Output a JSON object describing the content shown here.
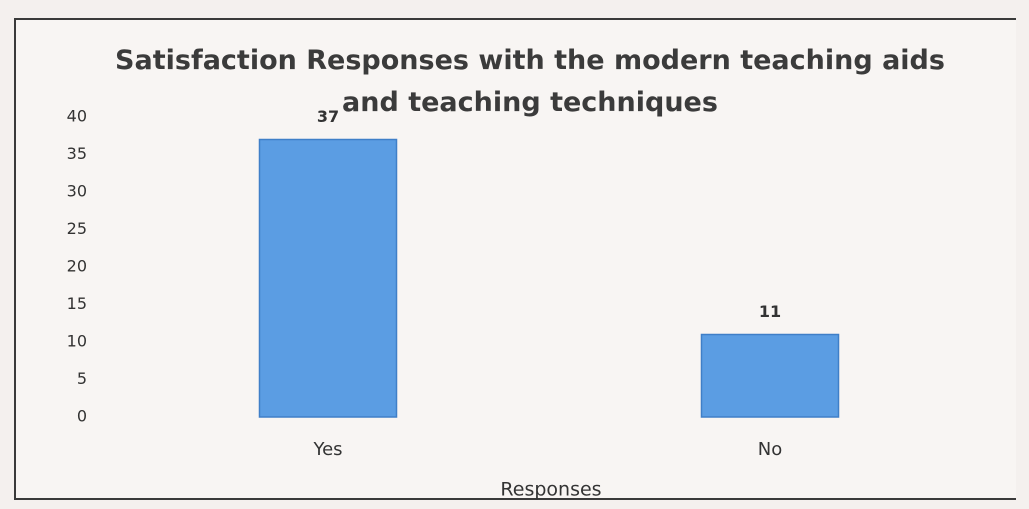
{
  "chart_data": {
    "type": "bar",
    "title": "Satisfaction Responses with the modern teaching aids and teaching techniques",
    "categories": [
      "Yes",
      "No"
    ],
    "values": [
      37,
      11
    ],
    "color": "#5b9de3",
    "xlabel": "Responses",
    "ylim": [
      0,
      40
    ],
    "yticks": [
      0,
      5,
      10,
      15,
      20,
      25,
      30,
      35,
      40
    ],
    "grid": false
  }
}
